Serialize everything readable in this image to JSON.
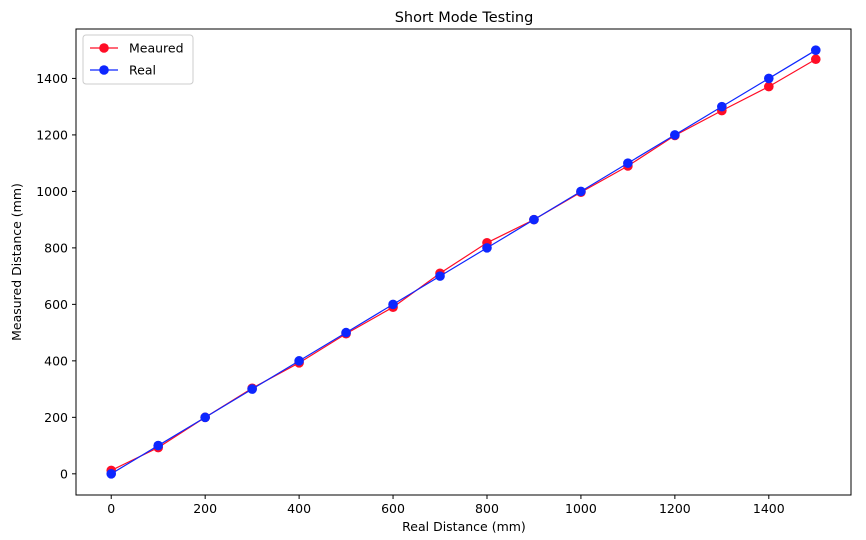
{
  "chart_data": {
    "type": "line",
    "title": "Short Mode Testing",
    "xlabel": "Real Distance (mm)",
    "ylabel": "Measured Distance (mm)",
    "xlim": [
      -75,
      1575
    ],
    "ylim": [
      -75,
      1575
    ],
    "x_ticks": [
      0,
      200,
      400,
      600,
      800,
      1000,
      1200,
      1400
    ],
    "y_ticks": [
      0,
      200,
      400,
      600,
      800,
      1000,
      1200,
      1400
    ],
    "grid": false,
    "legend_position": "top-left",
    "x": [
      0,
      100,
      200,
      300,
      400,
      500,
      600,
      700,
      800,
      900,
      1000,
      1100,
      1200,
      1300,
      1400,
      1500
    ],
    "series": [
      {
        "name": "Meaured",
        "color": "#ff0d26",
        "marker": "circle",
        "values": [
          12,
          93,
          200,
          303,
          393,
          496,
          590,
          710,
          818,
          900,
          997,
          1090,
          1198,
          1286,
          1371,
          1468
        ]
      },
      {
        "name": "Real",
        "color": "#0d26ff",
        "marker": "circle",
        "values": [
          0,
          100,
          200,
          300,
          400,
          500,
          600,
          700,
          800,
          900,
          1000,
          1100,
          1200,
          1300,
          1400,
          1500
        ]
      }
    ]
  }
}
